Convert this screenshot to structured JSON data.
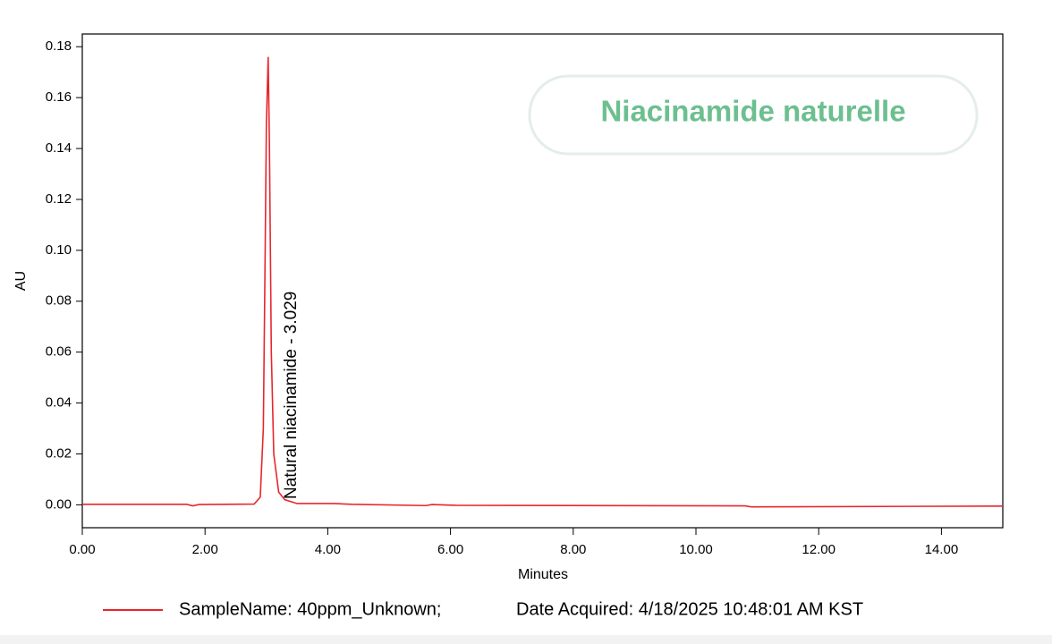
{
  "chart_data": {
    "type": "line",
    "title": "Niacinamide naturelle",
    "xlabel": "Minutes",
    "ylabel": "AU",
    "annotation": "Natural niacinamide - 3.029",
    "legend_note": "Date Acquired: 4/18/2025 10:48:01 AM KST",
    "xlim": [
      0,
      15
    ],
    "ylim": [
      -0.009,
      0.185
    ],
    "xticks": [
      {
        "value": 0,
        "label": "0.00"
      },
      {
        "value": 2,
        "label": "2.00"
      },
      {
        "value": 4,
        "label": "4.00"
      },
      {
        "value": 6,
        "label": "6.00"
      },
      {
        "value": 8,
        "label": "8.00"
      },
      {
        "value": 10,
        "label": "10.00"
      },
      {
        "value": 12,
        "label": "12.00"
      },
      {
        "value": 14,
        "label": "14.00"
      }
    ],
    "yticks": [
      {
        "value": 0,
        "label": "0.00"
      },
      {
        "value": 0.02,
        "label": "0.02"
      },
      {
        "value": 0.04,
        "label": "0.04"
      },
      {
        "value": 0.06,
        "label": "0.06"
      },
      {
        "value": 0.08,
        "label": "0.08"
      },
      {
        "value": 0.1,
        "label": "0.10"
      },
      {
        "value": 0.12,
        "label": "0.12"
      },
      {
        "value": 0.14,
        "label": "0.14"
      },
      {
        "value": 0.16,
        "label": "0.16"
      },
      {
        "value": 0.18,
        "label": "0.18"
      }
    ],
    "x": [
      0,
      1.7,
      1.8,
      1.9,
      2.8,
      2.9,
      2.95,
      2.98,
      3.0,
      3.029,
      3.05,
      3.08,
      3.12,
      3.2,
      3.3,
      3.5,
      4.1,
      4.4,
      5.6,
      5.7,
      6.1,
      10.8,
      10.9,
      15
    ],
    "series": [
      {
        "name": "SampleName: 40ppm_Unknown;",
        "color": "#e8262d",
        "values": [
          0.0002,
          0.0002,
          -0.0004,
          0.0001,
          0.0003,
          0.003,
          0.03,
          0.1,
          0.15,
          0.176,
          0.14,
          0.06,
          0.02,
          0.005,
          0.002,
          0.0005,
          0.0005,
          0.0002,
          -0.0003,
          0.0001,
          -0.0002,
          -0.0004,
          -0.0008,
          -0.0005
        ]
      }
    ]
  }
}
